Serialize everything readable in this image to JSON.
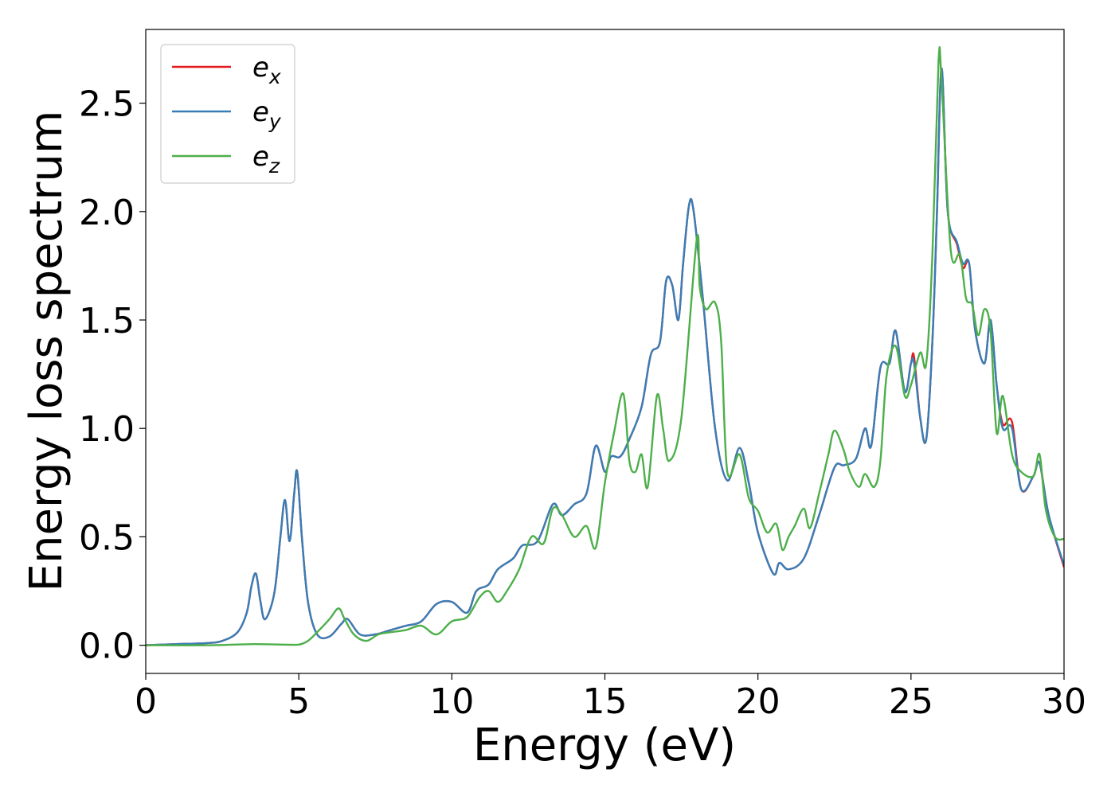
{
  "chart_data": {
    "type": "line",
    "title": "",
    "xlabel": "Energy (eV)",
    "ylabel": "Energy loss spectrum",
    "xlim": [
      0,
      30
    ],
    "ylim": [
      -0.13,
      2.84
    ],
    "xticks": [
      0,
      5,
      10,
      15,
      20,
      25,
      30
    ],
    "yticks": [
      0.0,
      0.5,
      1.0,
      1.5,
      2.0,
      2.5
    ],
    "xtick_labels": [
      "0",
      "5",
      "10",
      "15",
      "20",
      "25",
      "30"
    ],
    "ytick_labels": [
      "0.0",
      "0.5",
      "1.0",
      "1.5",
      "2.0",
      "2.5"
    ],
    "grid": false,
    "legend_position": "top-left",
    "series": [
      {
        "name": "e_x",
        "legend_base": "e",
        "legend_sub": "x",
        "color": "#e41a1c",
        "x": [
          0,
          1,
          2,
          2.5,
          3,
          3.3,
          3.45,
          3.6,
          3.75,
          3.9,
          4.2,
          4.4,
          4.55,
          4.7,
          4.85,
          4.95,
          5.1,
          5.3,
          5.6,
          6.0,
          6.4,
          6.6,
          7.0,
          7.5,
          8.0,
          8.5,
          9.0,
          9.5,
          10.0,
          10.5,
          10.8,
          11.2,
          11.5,
          12.0,
          12.3,
          12.8,
          13.3,
          13.6,
          14.0,
          14.4,
          14.7,
          15.0,
          15.2,
          15.5,
          15.8,
          16.2,
          16.5,
          16.8,
          17.0,
          17.2,
          17.4,
          17.55,
          17.75,
          17.9,
          18.2,
          18.6,
          19.0,
          19.4,
          19.7,
          20.0,
          20.5,
          20.7,
          21.0,
          21.5,
          22.0,
          22.5,
          22.8,
          23.2,
          23.5,
          23.7,
          24.0,
          24.3,
          24.5,
          24.8,
          25.0,
          25.1,
          25.3,
          25.5,
          25.7,
          25.85,
          26.0,
          26.2,
          26.5,
          26.7,
          26.9,
          27.1,
          27.4,
          27.6,
          27.8,
          28.0,
          28.3,
          28.6,
          29.0,
          29.2,
          29.5,
          30.0
        ],
        "values": [
          0.0,
          0.005,
          0.01,
          0.02,
          0.06,
          0.15,
          0.27,
          0.33,
          0.2,
          0.12,
          0.24,
          0.5,
          0.67,
          0.48,
          0.7,
          0.8,
          0.5,
          0.2,
          0.05,
          0.04,
          0.1,
          0.12,
          0.05,
          0.05,
          0.07,
          0.09,
          0.11,
          0.19,
          0.2,
          0.15,
          0.25,
          0.28,
          0.35,
          0.4,
          0.46,
          0.48,
          0.65,
          0.6,
          0.65,
          0.7,
          0.92,
          0.8,
          0.87,
          0.87,
          0.95,
          1.1,
          1.34,
          1.4,
          1.68,
          1.66,
          1.5,
          1.75,
          2.03,
          2.0,
          1.6,
          1.0,
          0.76,
          0.91,
          0.75,
          0.52,
          0.33,
          0.38,
          0.35,
          0.4,
          0.6,
          0.82,
          0.83,
          0.86,
          1.0,
          0.92,
          1.28,
          1.3,
          1.45,
          1.17,
          1.3,
          1.33,
          1.05,
          0.95,
          1.4,
          2.0,
          2.66,
          2.0,
          1.85,
          1.74,
          1.76,
          1.45,
          1.3,
          1.5,
          1.2,
          1.02,
          1.03,
          0.72,
          0.78,
          0.84,
          0.6,
          0.36
        ]
      },
      {
        "name": "e_y",
        "legend_base": "e",
        "legend_sub": "y",
        "color": "#377eb8",
        "x": [
          0,
          1,
          2,
          2.5,
          3,
          3.3,
          3.45,
          3.6,
          3.75,
          3.9,
          4.2,
          4.4,
          4.55,
          4.7,
          4.85,
          4.95,
          5.1,
          5.3,
          5.6,
          6.0,
          6.4,
          6.6,
          7.0,
          7.5,
          8.0,
          8.5,
          9.0,
          9.5,
          10.0,
          10.5,
          10.8,
          11.2,
          11.5,
          12.0,
          12.3,
          12.8,
          13.3,
          13.6,
          14.0,
          14.4,
          14.7,
          15.0,
          15.2,
          15.5,
          15.8,
          16.2,
          16.5,
          16.8,
          17.0,
          17.2,
          17.4,
          17.55,
          17.75,
          17.9,
          18.2,
          18.6,
          19.0,
          19.4,
          19.7,
          20.0,
          20.5,
          20.7,
          21.0,
          21.5,
          22.0,
          22.5,
          22.8,
          23.2,
          23.5,
          23.7,
          24.0,
          24.3,
          24.5,
          24.8,
          25.0,
          25.1,
          25.3,
          25.5,
          25.7,
          25.85,
          26.0,
          26.2,
          26.5,
          26.7,
          26.9,
          27.1,
          27.4,
          27.6,
          27.8,
          28.0,
          28.3,
          28.6,
          29.0,
          29.2,
          29.5,
          30.0
        ],
        "values": [
          0.0,
          0.005,
          0.01,
          0.02,
          0.06,
          0.15,
          0.27,
          0.33,
          0.2,
          0.12,
          0.24,
          0.5,
          0.67,
          0.48,
          0.7,
          0.8,
          0.5,
          0.2,
          0.05,
          0.04,
          0.1,
          0.12,
          0.05,
          0.05,
          0.07,
          0.09,
          0.11,
          0.19,
          0.2,
          0.15,
          0.25,
          0.28,
          0.35,
          0.4,
          0.46,
          0.48,
          0.65,
          0.6,
          0.65,
          0.7,
          0.92,
          0.8,
          0.87,
          0.87,
          0.95,
          1.1,
          1.34,
          1.4,
          1.68,
          1.66,
          1.5,
          1.75,
          2.03,
          2.0,
          1.6,
          1.0,
          0.76,
          0.91,
          0.75,
          0.52,
          0.33,
          0.38,
          0.35,
          0.4,
          0.6,
          0.82,
          0.83,
          0.86,
          1.0,
          0.92,
          1.28,
          1.3,
          1.45,
          1.17,
          1.3,
          1.3,
          1.05,
          0.95,
          1.4,
          2.0,
          2.66,
          2.0,
          1.86,
          1.76,
          1.76,
          1.45,
          1.3,
          1.5,
          1.2,
          1.0,
          1.0,
          0.72,
          0.78,
          0.84,
          0.6,
          0.37
        ]
      },
      {
        "name": "e_z",
        "legend_base": "e",
        "legend_sub": "z",
        "color": "#4daf4a",
        "x": [
          0,
          2,
          3.5,
          4.5,
          5.0,
          5.3,
          5.6,
          6.0,
          6.3,
          6.5,
          6.8,
          7.2,
          7.6,
          8.0,
          8.5,
          9.0,
          9.5,
          10.0,
          10.5,
          10.9,
          11.2,
          11.5,
          11.8,
          12.2,
          12.6,
          13.0,
          13.3,
          13.6,
          14.0,
          14.4,
          14.7,
          15.0,
          15.3,
          15.6,
          15.8,
          16.0,
          16.2,
          16.4,
          16.7,
          16.9,
          17.1,
          17.5,
          18.0,
          18.1,
          18.3,
          18.6,
          18.8,
          19.0,
          19.4,
          19.7,
          20.0,
          20.3,
          20.6,
          20.8,
          21.0,
          21.2,
          21.5,
          21.7,
          22.0,
          22.3,
          22.5,
          22.8,
          23.0,
          23.3,
          23.5,
          23.8,
          24.0,
          24.2,
          24.5,
          24.8,
          25.0,
          25.3,
          25.5,
          25.7,
          25.9,
          26.0,
          26.3,
          26.6,
          26.8,
          27.0,
          27.2,
          27.4,
          27.6,
          27.8,
          28.0,
          28.3,
          28.6,
          29.0,
          29.2,
          29.4,
          29.7,
          30.0
        ],
        "values": [
          0.0,
          0.0,
          0.005,
          0.003,
          0.003,
          0.02,
          0.06,
          0.12,
          0.17,
          0.12,
          0.05,
          0.02,
          0.05,
          0.06,
          0.07,
          0.09,
          0.05,
          0.11,
          0.13,
          0.22,
          0.25,
          0.2,
          0.25,
          0.35,
          0.5,
          0.47,
          0.63,
          0.6,
          0.5,
          0.55,
          0.45,
          0.75,
          0.98,
          1.16,
          0.85,
          0.8,
          0.88,
          0.73,
          1.15,
          1.0,
          0.85,
          1.05,
          1.87,
          1.65,
          1.55,
          1.58,
          1.4,
          0.8,
          0.88,
          0.68,
          0.62,
          0.52,
          0.56,
          0.44,
          0.5,
          0.55,
          0.63,
          0.54,
          0.7,
          0.88,
          0.99,
          0.9,
          0.8,
          0.73,
          0.79,
          0.73,
          0.85,
          1.24,
          1.38,
          1.15,
          1.2,
          1.35,
          1.3,
          1.8,
          2.69,
          2.6,
          1.82,
          1.8,
          1.6,
          1.57,
          1.43,
          1.55,
          1.45,
          0.98,
          1.15,
          0.88,
          0.8,
          0.78,
          0.88,
          0.63,
          0.5,
          0.49
        ]
      }
    ]
  }
}
